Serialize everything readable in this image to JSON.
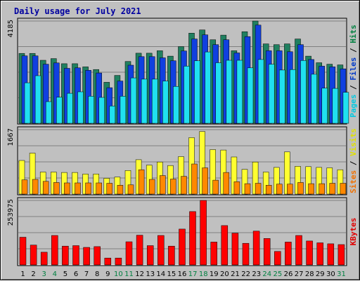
{
  "title": "Daily usage for July 2021",
  "chart_data": [
    {
      "type": "bar",
      "panel": "hits",
      "ymax_label": "4185",
      "ylim": [
        0,
        4185
      ],
      "grid": true,
      "legend": {
        "placement": "right",
        "parts": [
          {
            "text": "Pages",
            "color": "#00c8e0"
          },
          {
            "text": "/",
            "color": "#000000"
          },
          {
            "text": "Files",
            "color": "#0038c8"
          },
          {
            "text": "/",
            "color": "#000000"
          },
          {
            "text": "Hits",
            "color": "#008040"
          }
        ]
      },
      "categories": [
        "1",
        "2",
        "3",
        "4",
        "5",
        "6",
        "7",
        "8",
        "9",
        "10",
        "11",
        "12",
        "13",
        "14",
        "15",
        "16",
        "17",
        "18",
        "19",
        "20",
        "21",
        "22",
        "23",
        "24",
        "25",
        "26",
        "27",
        "28",
        "29",
        "30",
        "31"
      ],
      "series": [
        {
          "name": "Hits",
          "color": "#208060",
          "values": [
            2860,
            2860,
            2580,
            2650,
            2440,
            2440,
            2310,
            2200,
            1680,
            1960,
            2530,
            2870,
            2870,
            2970,
            2750,
            3140,
            3690,
            3820,
            3420,
            3610,
            2970,
            3750,
            4185,
            3250,
            3220,
            3250,
            3450,
            2750,
            2480,
            2420,
            2390
          ]
        },
        {
          "name": "Files",
          "color": "#1040e0",
          "values": [
            2760,
            2760,
            2420,
            2470,
            2250,
            2270,
            2170,
            2060,
            1460,
            1730,
            2380,
            2730,
            2730,
            2680,
            2560,
            2960,
            3450,
            3620,
            3220,
            3420,
            2880,
            3550,
            4020,
            2970,
            2970,
            2930,
            3220,
            2610,
            2340,
            2310,
            2230
          ]
        },
        {
          "name": "Pages",
          "color": "#20e0f0",
          "values": [
            1660,
            1950,
            890,
            1070,
            1230,
            1290,
            1110,
            1060,
            710,
            1110,
            1860,
            1810,
            1810,
            1730,
            1510,
            2340,
            2560,
            2920,
            2480,
            2580,
            2580,
            2270,
            2610,
            2420,
            2180,
            2200,
            2570,
            2010,
            1440,
            1430,
            1270
          ]
        }
      ]
    },
    {
      "type": "bar",
      "panel": "visits",
      "ymax_label": "1667",
      "ylim": [
        0,
        1667
      ],
      "grid": true,
      "legend": {
        "placement": "right",
        "parts": [
          {
            "text": "Sites",
            "color": "#f07000"
          },
          {
            "text": "/",
            "color": "#000000"
          },
          {
            "text": "Visits",
            "color": "#e0e000"
          }
        ]
      },
      "categories": [
        "1",
        "2",
        "3",
        "4",
        "5",
        "6",
        "7",
        "8",
        "9",
        "10",
        "11",
        "12",
        "13",
        "14",
        "15",
        "16",
        "17",
        "18",
        "19",
        "20",
        "21",
        "22",
        "23",
        "24",
        "25",
        "26",
        "27",
        "28",
        "29",
        "30",
        "31"
      ],
      "series": [
        {
          "name": "Visits",
          "color": "#ffff30",
          "values": [
            870,
            1060,
            570,
            570,
            560,
            560,
            520,
            520,
            410,
            440,
            610,
            890,
            750,
            830,
            740,
            970,
            1460,
            1620,
            1150,
            1140,
            960,
            640,
            830,
            570,
            690,
            1090,
            720,
            710,
            690,
            680,
            630
          ]
        },
        {
          "name": "Sites",
          "color": "#ff8800",
          "values": [
            370,
            380,
            330,
            300,
            290,
            290,
            290,
            290,
            280,
            230,
            240,
            630,
            380,
            480,
            390,
            460,
            780,
            680,
            360,
            560,
            320,
            270,
            280,
            230,
            260,
            260,
            300,
            270,
            270,
            280,
            280
          ]
        }
      ]
    },
    {
      "type": "bar",
      "panel": "kbytes",
      "ymax_label": "253975",
      "ylim": [
        0,
        253975
      ],
      "grid": true,
      "legend": {
        "placement": "right",
        "parts": [
          {
            "text": "KBytes",
            "color": "#e00000"
          }
        ]
      },
      "categories": [
        "1",
        "2",
        "3",
        "4",
        "5",
        "6",
        "7",
        "8",
        "9",
        "10",
        "11",
        "12",
        "13",
        "14",
        "15",
        "16",
        "17",
        "18",
        "19",
        "20",
        "21",
        "22",
        "23",
        "24",
        "25",
        "26",
        "27",
        "28",
        "29",
        "30",
        "31"
      ],
      "series": [
        {
          "name": "KBytes",
          "color": "#ff0000",
          "values": [
            109000,
            78000,
            50000,
            116000,
            74000,
            76000,
            69000,
            72000,
            27000,
            27000,
            91000,
            117000,
            76000,
            116000,
            74000,
            141000,
            210000,
            253975,
            90000,
            155000,
            125000,
            85000,
            133000,
            104000,
            53000,
            90000,
            116000,
            94000,
            87000,
            83000,
            80000
          ]
        }
      ]
    }
  ],
  "x_labels": {
    "days": [
      "1",
      "2",
      "3",
      "4",
      "5",
      "6",
      "7",
      "8",
      "9",
      "10",
      "11",
      "12",
      "13",
      "14",
      "15",
      "16",
      "17",
      "18",
      "19",
      "20",
      "21",
      "22",
      "23",
      "24",
      "25",
      "26",
      "27",
      "28",
      "29",
      "30",
      "31"
    ],
    "weekend_days": [
      "3",
      "4",
      "10",
      "11",
      "17",
      "18",
      "24",
      "25",
      "31"
    ],
    "weekday_color": "#000000",
    "weekend_color": "#008040"
  },
  "colors": {
    "background": "#c0c0c0",
    "plot_bg": "#c0c0c0",
    "title": "#0000a0",
    "grid": "#808080"
  }
}
